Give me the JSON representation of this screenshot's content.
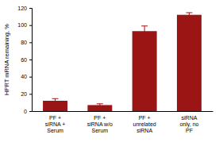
{
  "chart_data": {
    "type": "bar",
    "y_label": "HPRT mRNA remaining, %",
    "categories": [
      "PF + siRNA + Serum",
      "PF + siRNA w/o Serum",
      "PF + unrelated siRNA",
      "siRNA only, no PF"
    ],
    "values": [
      12,
      7,
      93,
      112
    ],
    "errors": [
      2.5,
      1.5,
      6,
      2.5
    ],
    "color": "#9b1515",
    "ylim": [
      0,
      120
    ],
    "yticks": [
      0,
      20,
      40,
      60,
      80,
      100,
      120
    ],
    "grid": false
  }
}
